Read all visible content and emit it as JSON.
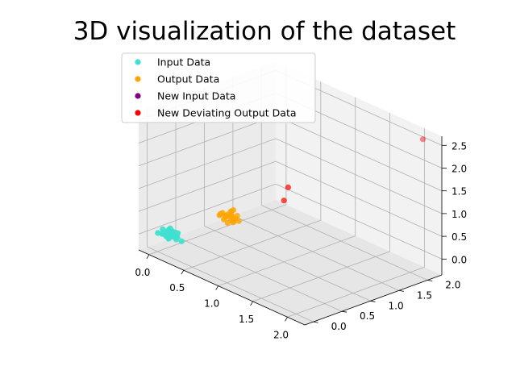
{
  "chart_data": {
    "type": "scatter3d",
    "title": "3D visualization of the dataset",
    "xlabel": "",
    "ylabel": "",
    "zlabel": "",
    "xlim": [
      -0.15,
      2.25
    ],
    "ylim": [
      -0.15,
      2.25
    ],
    "zlim": [
      -0.35,
      2.7
    ],
    "x_ticks": [
      "0.0",
      "0.5",
      "1.0",
      "1.5",
      "2.0"
    ],
    "y_ticks": [
      "0.0",
      "0.5",
      "1.0",
      "1.5",
      "2.0"
    ],
    "z_ticks": [
      "0.0",
      "0.5",
      "1.0",
      "1.5",
      "2.0",
      "2.5"
    ],
    "grid": true,
    "legend_position": "top-left",
    "series": [
      {
        "name": "Input Data",
        "color": "#40e0d0",
        "points": [
          [
            0.05,
            0.02,
            0.06
          ],
          [
            0.08,
            0.05,
            0.02
          ],
          [
            0.12,
            0.03,
            0.09
          ],
          [
            0.02,
            0.08,
            0.04
          ],
          [
            0.15,
            0.07,
            0.05
          ],
          [
            0.06,
            0.12,
            0.1
          ],
          [
            0.1,
            0.1,
            0.01
          ],
          [
            0.18,
            0.04,
            0.08
          ],
          [
            0.03,
            0.15,
            0.07
          ],
          [
            0.13,
            0.14,
            0.03
          ],
          [
            0.09,
            0.02,
            0.12
          ],
          [
            0.2,
            0.1,
            0.06
          ],
          [
            0.04,
            0.04,
            0.15
          ],
          [
            0.16,
            0.16,
            0.09
          ],
          [
            0.11,
            0.06,
            0.0
          ],
          [
            0.07,
            0.18,
            0.05
          ],
          [
            0.19,
            0.02,
            0.11
          ],
          [
            0.01,
            0.1,
            0.0
          ],
          [
            0.14,
            0.09,
            0.14
          ],
          [
            0.05,
            0.16,
            0.12
          ],
          [
            0.12,
            0.17,
            0.07
          ],
          [
            0.17,
            0.12,
            0.02
          ],
          [
            0.08,
            0.08,
            0.08
          ],
          [
            0.22,
            0.06,
            0.04
          ],
          [
            0.28,
            0.08,
            0.03
          ],
          [
            0.02,
            -0.02,
            0.08
          ],
          [
            0.1,
            0.13,
            0.11
          ],
          [
            0.15,
            0.01,
            0.03
          ]
        ]
      },
      {
        "name": "Output Data",
        "color": "#ffa500",
        "points": [
          [
            0.55,
            0.52,
            0.58
          ],
          [
            0.6,
            0.55,
            0.5
          ],
          [
            0.52,
            0.6,
            0.55
          ],
          [
            0.62,
            0.5,
            0.62
          ],
          [
            0.58,
            0.62,
            0.48
          ],
          [
            0.5,
            0.53,
            0.6
          ],
          [
            0.65,
            0.58,
            0.55
          ],
          [
            0.56,
            0.48,
            0.52
          ],
          [
            0.53,
            0.65,
            0.6
          ],
          [
            0.63,
            0.63,
            0.58
          ],
          [
            0.59,
            0.51,
            0.45
          ],
          [
            0.51,
            0.57,
            0.5
          ],
          [
            0.66,
            0.52,
            0.52
          ],
          [
            0.57,
            0.59,
            0.65
          ],
          [
            0.61,
            0.56,
            0.6
          ],
          [
            0.54,
            0.54,
            0.54
          ],
          [
            0.6,
            0.6,
            0.7
          ],
          [
            0.48,
            0.5,
            0.55
          ],
          [
            0.67,
            0.61,
            0.5
          ],
          [
            0.55,
            0.63,
            0.52
          ],
          [
            0.52,
            0.47,
            0.62
          ],
          [
            0.64,
            0.55,
            0.48
          ]
        ]
      },
      {
        "name": "New Input Data",
        "color": "#800080",
        "points": []
      },
      {
        "name": "New Deviating Output Data",
        "color": "#ff0000",
        "points": [
          [
            1.0,
            1.0,
            1.0
          ],
          [
            1.02,
            1.05,
            1.28
          ],
          [
            2.1,
            2.1,
            2.6
          ]
        ]
      }
    ]
  }
}
